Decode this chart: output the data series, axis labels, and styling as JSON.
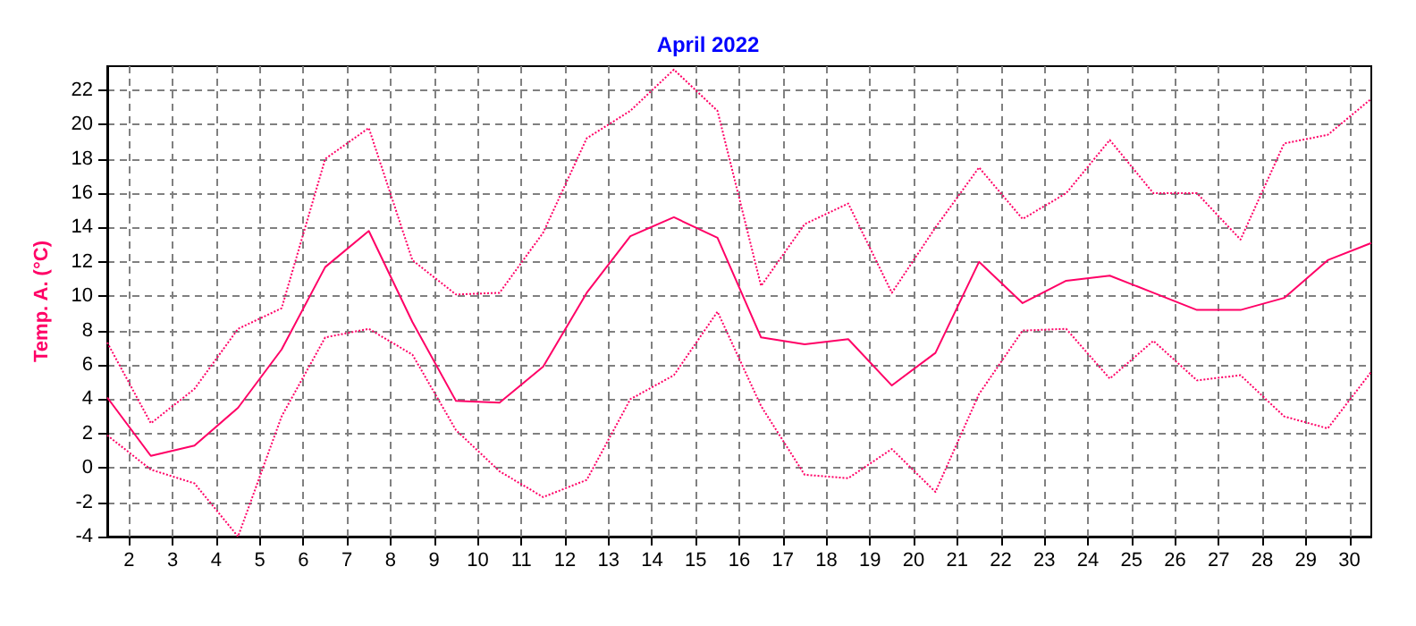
{
  "chart_data": {
    "type": "line",
    "title": "April 2022",
    "ylabel": "Temp. A. (°C)",
    "x": [
      1.5,
      2.5,
      3.5,
      4.5,
      5.5,
      6.5,
      7.5,
      8.5,
      9.5,
      10.5,
      11.5,
      12.5,
      13.5,
      14.5,
      15.5,
      16.5,
      17.5,
      18.5,
      19.5,
      20.5,
      21.5,
      22.5,
      23.5,
      24.5,
      25.5,
      26.5,
      27.5,
      28.5,
      29.5,
      30.5
    ],
    "series": [
      {
        "color": "#ff0066",
        "line_style": "dotted",
        "values": [
          7.3,
          2.6,
          4.6,
          8.1,
          9.3,
          18.0,
          19.8,
          12.1,
          10.1,
          10.2,
          13.7,
          19.2,
          20.8,
          23.2,
          20.8,
          10.6,
          14.2,
          15.4,
          10.2,
          14.0,
          17.5,
          14.5,
          16.0,
          19.1,
          16.0,
          16.0,
          13.3,
          18.9,
          19.4,
          21.5
        ]
      },
      {
        "color": "#ff0066",
        "line_style": "solid",
        "values": [
          4.1,
          0.7,
          1.3,
          3.5,
          6.9,
          11.7,
          13.8,
          8.5,
          3.9,
          3.8,
          5.9,
          10.2,
          13.5,
          14.6,
          13.4,
          7.6,
          7.2,
          7.5,
          4.8,
          6.7,
          12.0,
          9.6,
          10.9,
          11.2,
          10.2,
          9.2,
          9.2,
          9.9,
          12.1,
          13.1
        ]
      },
      {
        "color": "#ff0066",
        "line_style": "dotted",
        "values": [
          1.9,
          -0.1,
          -0.9,
          -4.0,
          3.0,
          7.6,
          8.1,
          6.6,
          2.2,
          -0.2,
          -1.7,
          -0.7,
          4.0,
          5.4,
          9.1,
          3.6,
          -0.4,
          -0.6,
          1.1,
          -1.4,
          4.3,
          8.0,
          8.1,
          5.2,
          7.4,
          5.1,
          5.4,
          3.0,
          2.3,
          5.6
        ]
      }
    ],
    "xlim": [
      1.5,
      30.5
    ],
    "xticks": [
      2,
      3,
      4,
      5,
      6,
      7,
      8,
      9,
      10,
      11,
      12,
      13,
      14,
      15,
      16,
      17,
      18,
      19,
      20,
      21,
      22,
      23,
      24,
      25,
      26,
      27,
      28,
      29,
      30
    ],
    "ylim": [
      -4,
      23.4
    ],
    "yticks": [
      -4,
      -2,
      0,
      2,
      4,
      6,
      8,
      10,
      12,
      14,
      16,
      18,
      20,
      22
    ],
    "grid": true,
    "marker": "none"
  }
}
